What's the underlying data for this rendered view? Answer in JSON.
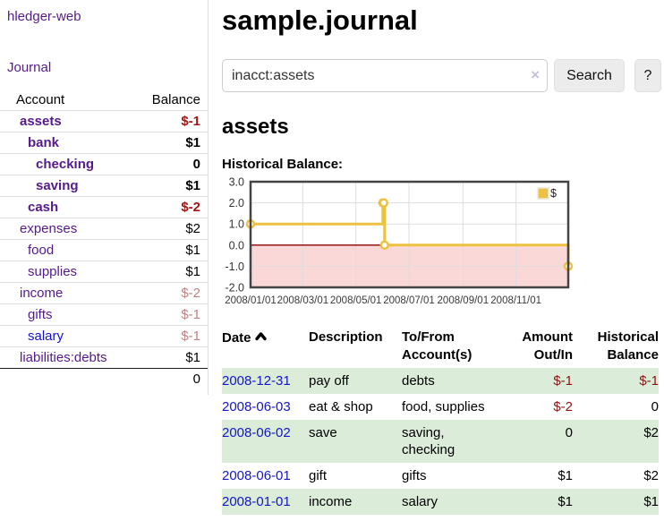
{
  "sidebar": {
    "brand": "hledger-web",
    "journal_link": "Journal",
    "accounts_table": {
      "account_header": "Account",
      "balance_header": "Balance",
      "rows": [
        {
          "name": "assets",
          "level": 1,
          "bold": true,
          "balance": "$-1",
          "balance_style": "neg-strong",
          "link_color": "purple"
        },
        {
          "name": "bank",
          "level": 2,
          "bold": true,
          "balance": "$1",
          "balance_style": "pos",
          "link_color": "purple"
        },
        {
          "name": "checking",
          "level": 3,
          "bold": true,
          "balance": "0",
          "balance_style": "pos",
          "link_color": "purple"
        },
        {
          "name": "saving",
          "level": 3,
          "bold": true,
          "balance": "$1",
          "balance_style": "pos",
          "link_color": "purple"
        },
        {
          "name": "cash",
          "level": 2,
          "bold": true,
          "balance": "$-2",
          "balance_style": "neg-strong",
          "link_color": "purple"
        },
        {
          "name": "expenses",
          "level": 1,
          "bold": false,
          "balance": "$2",
          "balance_style": "pos",
          "link_color": "purple"
        },
        {
          "name": "food",
          "level": 2,
          "bold": false,
          "balance": "$1",
          "balance_style": "pos",
          "link_color": "purple"
        },
        {
          "name": "supplies",
          "level": 2,
          "bold": false,
          "balance": "$1",
          "balance_style": "pos",
          "link_color": "purple"
        },
        {
          "name": "income",
          "level": 1,
          "bold": false,
          "balance": "$-2",
          "balance_style": "neg-soft",
          "link_color": "purple"
        },
        {
          "name": "gifts",
          "level": 2,
          "bold": false,
          "balance": "$-1",
          "balance_style": "neg-soft",
          "link_color": "purple"
        },
        {
          "name": "salary",
          "level": 2,
          "bold": false,
          "balance": "$-1",
          "balance_style": "neg-soft",
          "link_color": "blue"
        },
        {
          "name": "liabilities:debts",
          "level": 1,
          "bold": false,
          "balance": "$1",
          "balance_style": "pos",
          "link_color": "purple"
        }
      ],
      "total": "0"
    }
  },
  "main": {
    "title": "sample.journal",
    "search": {
      "value": "inacct:assets",
      "clear_icon": "×",
      "search_button": "Search",
      "help_button": "?"
    },
    "account_heading": "assets",
    "chart_label": "Historical Balance:"
  },
  "chart_data": {
    "type": "line",
    "steps": true,
    "title": "Historical Balance:",
    "x_min": "2008-01-01",
    "x_max": "2008-12-31",
    "x_tick_labels": [
      "2008/01/01",
      "2008/03/01",
      "2008/05/01",
      "2008/07/01",
      "2008/09/01",
      "2008/11/01"
    ],
    "y_ticks": [
      3.0,
      2.0,
      1.0,
      0.0,
      -1.0,
      -2.0
    ],
    "ylim": [
      -2,
      3
    ],
    "series": [
      {
        "name": "$",
        "color": "#edc240",
        "points": [
          [
            "2008-01-01",
            1
          ],
          [
            "2008-06-01",
            2
          ],
          [
            "2008-06-02",
            2
          ],
          [
            "2008-06-03",
            0
          ],
          [
            "2008-12-31",
            -1
          ]
        ]
      }
    ],
    "legend": {
      "label": "$",
      "position": "top-right"
    },
    "colors": {
      "grid": "#dddddd",
      "border": "#444444",
      "zero_line": "#8b0000",
      "negative_region": "#fbd8d8",
      "marker_fill": "#ffffff"
    }
  },
  "register_table": {
    "headers": {
      "date": "Date",
      "description": "Description",
      "accounts": "To/From Account(s)",
      "amount": "Amount Out/In",
      "balance": "Historical Balance"
    },
    "rows": [
      {
        "date": "2008-12-31",
        "description": "pay off",
        "accounts": "debts",
        "amount": "$-1",
        "amount_neg": true,
        "balance": "$-1",
        "balance_neg": true,
        "stripe": true
      },
      {
        "date": "2008-06-03",
        "description": "eat & shop",
        "accounts": "food, supplies",
        "amount": "$-2",
        "amount_neg": true,
        "balance": "0",
        "balance_neg": false,
        "stripe": false
      },
      {
        "date": "2008-06-02",
        "description": "save",
        "accounts": "saving, checking",
        "amount": "0",
        "amount_neg": false,
        "balance": "$2",
        "balance_neg": false,
        "stripe": true
      },
      {
        "date": "2008-06-01",
        "description": "gift",
        "accounts": "gifts",
        "amount": "$1",
        "amount_neg": false,
        "balance": "$2",
        "balance_neg": false,
        "stripe": false
      },
      {
        "date": "2008-01-01",
        "description": "income",
        "accounts": "salary",
        "amount": "$1",
        "amount_neg": false,
        "balance": "$1",
        "balance_neg": false,
        "stripe": true
      }
    ]
  }
}
